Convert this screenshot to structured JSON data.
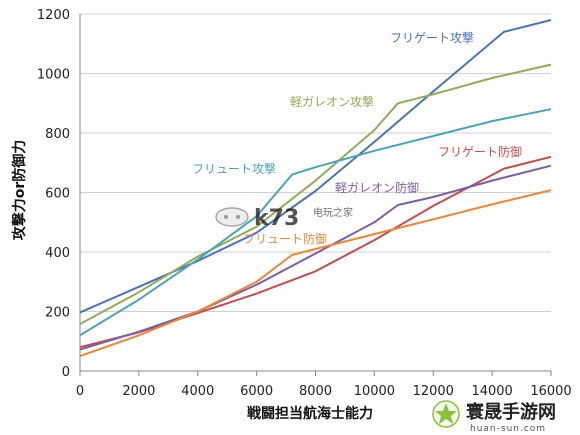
{
  "chart_data": {
    "type": "line",
    "title": "",
    "xlabel": "戦闘担当航海士能力",
    "ylabel": "攻撃力or防御力",
    "xlim": [
      0,
      16000
    ],
    "ylim": [
      0,
      1200
    ],
    "xticks": [
      0,
      2000,
      4000,
      6000,
      8000,
      10000,
      12000,
      14000,
      16000
    ],
    "yticks": [
      0,
      200,
      400,
      600,
      800,
      1000,
      1200
    ],
    "grid": "horizontal",
    "legend": "inline-labels",
    "series": [
      {
        "name": "フリゲート攻撃",
        "color": "#4a74b5",
        "points": [
          [
            0,
            197
          ],
          [
            2000,
            283
          ],
          [
            4000,
            370
          ],
          [
            6000,
            465
          ],
          [
            8000,
            605
          ],
          [
            10000,
            770
          ],
          [
            12000,
            940
          ],
          [
            14400,
            1140
          ],
          [
            16000,
            1180
          ]
        ]
      },
      {
        "name": "軽ガレオン攻撃",
        "color": "#90ab5a",
        "points": [
          [
            0,
            158
          ],
          [
            2000,
            265
          ],
          [
            4000,
            385
          ],
          [
            6000,
            485
          ],
          [
            8000,
            640
          ],
          [
            10000,
            810
          ],
          [
            10800,
            900
          ],
          [
            12000,
            930
          ],
          [
            14000,
            985
          ],
          [
            16000,
            1030
          ]
        ]
      },
      {
        "name": "フリュート攻撃",
        "color": "#4ba3b7",
        "points": [
          [
            0,
            120
          ],
          [
            2000,
            240
          ],
          [
            4000,
            375
          ],
          [
            6000,
            520
          ],
          [
            7200,
            660
          ],
          [
            8000,
            685
          ],
          [
            10000,
            740
          ],
          [
            12000,
            790
          ],
          [
            14000,
            840
          ],
          [
            16000,
            880
          ]
        ]
      },
      {
        "name": "フリゲート防御",
        "color": "#bd4f50",
        "points": [
          [
            0,
            80
          ],
          [
            2000,
            130
          ],
          [
            4000,
            195
          ],
          [
            6000,
            260
          ],
          [
            8000,
            335
          ],
          [
            10000,
            440
          ],
          [
            12000,
            555
          ],
          [
            14400,
            680
          ],
          [
            16000,
            720
          ]
        ]
      },
      {
        "name": "軽ガレオン防御",
        "color": "#7c5da6",
        "points": [
          [
            0,
            72
          ],
          [
            2000,
            132
          ],
          [
            4000,
            200
          ],
          [
            6000,
            290
          ],
          [
            8000,
            395
          ],
          [
            10000,
            500
          ],
          [
            10800,
            558
          ],
          [
            12000,
            585
          ],
          [
            14000,
            640
          ],
          [
            16000,
            690
          ]
        ]
      },
      {
        "name": "フリュート防御",
        "color": "#e6873a",
        "points": [
          [
            0,
            50
          ],
          [
            2000,
            120
          ],
          [
            4000,
            200
          ],
          [
            6000,
            300
          ],
          [
            7200,
            390
          ],
          [
            8000,
            410
          ],
          [
            10000,
            460
          ],
          [
            12000,
            510
          ],
          [
            14000,
            560
          ],
          [
            16000,
            608
          ]
        ]
      }
    ]
  },
  "watermarks": {
    "center_text": "k73",
    "center_subtext": "电玩之家",
    "corner_text": "寰晟手游网",
    "corner_subtext": "huan-sun.com"
  }
}
